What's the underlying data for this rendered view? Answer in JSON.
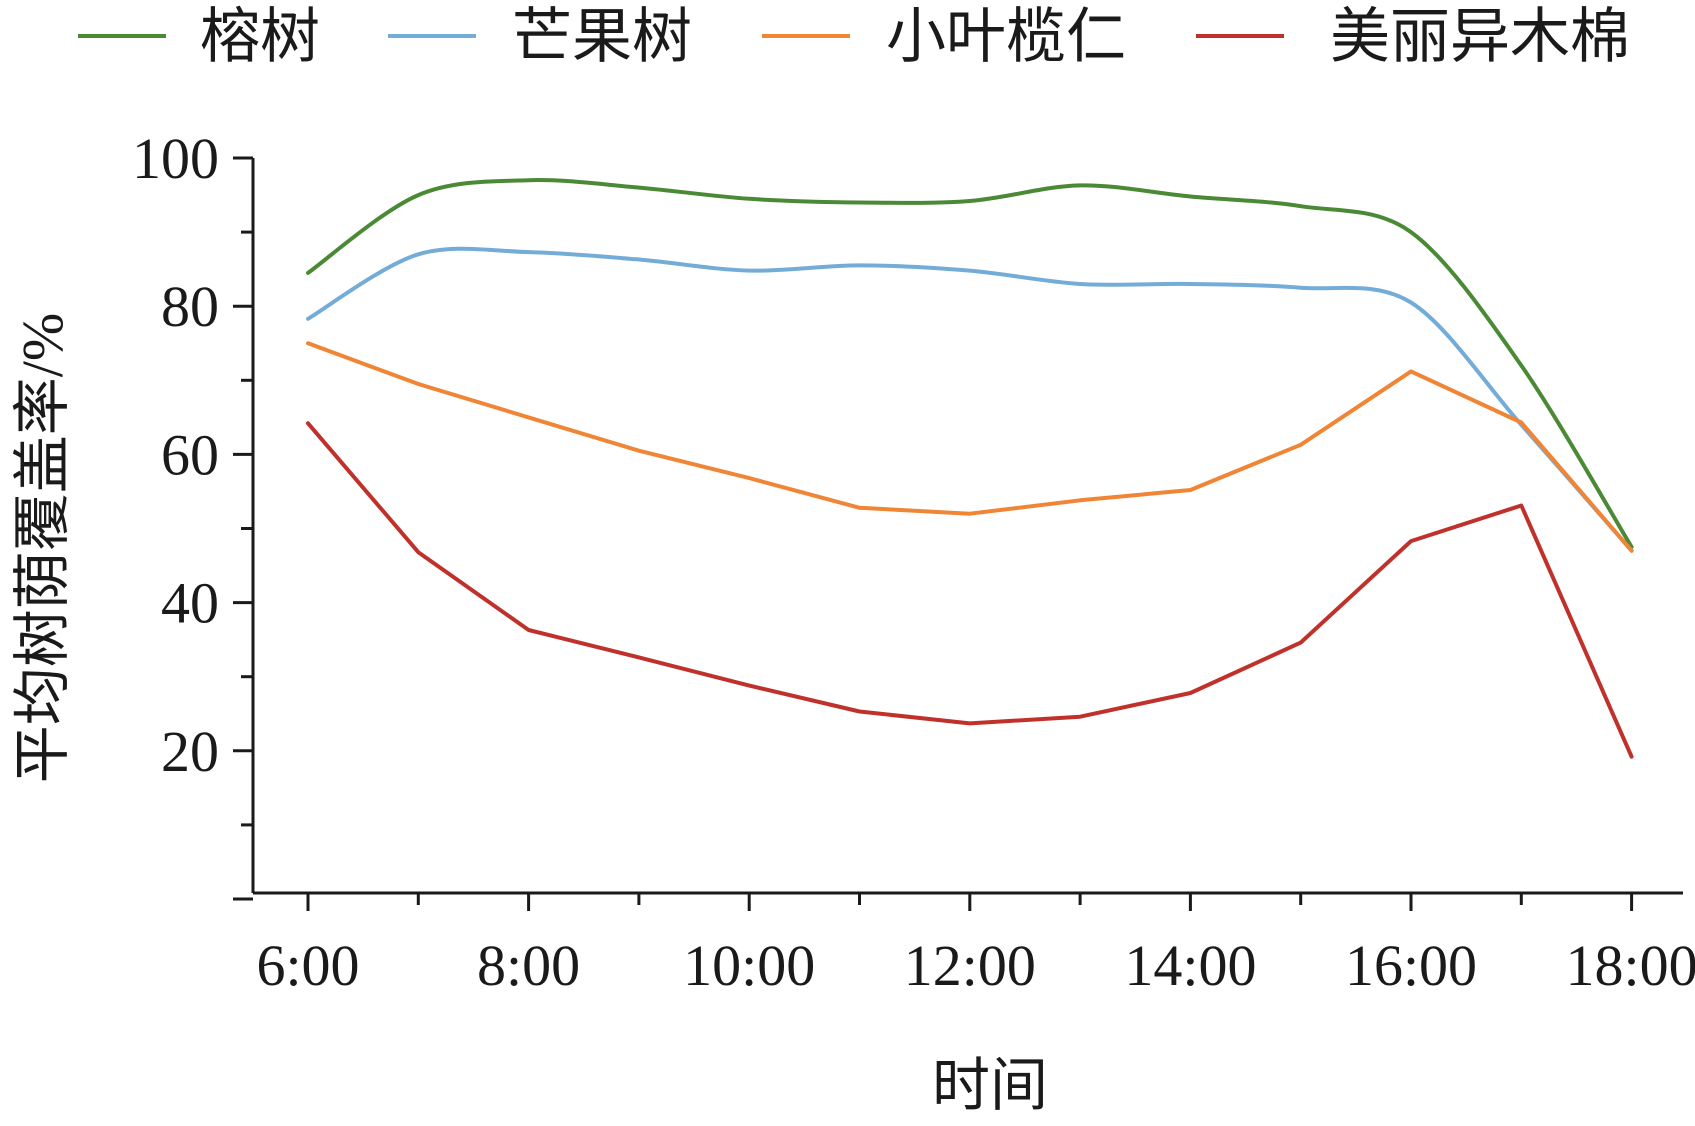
{
  "chart_data": {
    "type": "line",
    "title": "",
    "xlabel": "时间",
    "ylabel": "平均树荫覆盖率/%",
    "categories": [
      "6:00",
      "7:00",
      "8:00",
      "9:00",
      "10:00",
      "11:00",
      "12:00",
      "13:00",
      "14:00",
      "15:00",
      "16:00",
      "17:00",
      "18:00"
    ],
    "x_tick_labels": [
      "6:00",
      "8:00",
      "10:00",
      "12:00",
      "14:00",
      "16:00",
      "18:00"
    ],
    "ylim": [
      0,
      100
    ],
    "y_ticks": [
      20,
      40,
      60,
      80,
      100
    ],
    "grid": false,
    "legend_position": "top",
    "series": [
      {
        "name": "榕树",
        "color": "#4a8a35",
        "smooth": true,
        "values": [
          84.5,
          95,
          97,
          96,
          94.5,
          94,
          94.2,
          96.3,
          94.8,
          93.5,
          90,
          72,
          47.5
        ]
      },
      {
        "name": "芒果树",
        "color": "#74acd8",
        "smooth": true,
        "values": [
          78.3,
          87,
          87.3,
          86.3,
          84.8,
          85.5,
          84.8,
          83,
          83,
          82.5,
          80.5,
          64,
          47
        ]
      },
      {
        "name": "小叶榄仁",
        "color": "#ef8535",
        "smooth": false,
        "values": [
          75,
          69.5,
          65,
          60.5,
          56.8,
          52.8,
          52,
          53.8,
          55.2,
          61.3,
          71.2,
          64.3,
          47
        ]
      },
      {
        "name": "美丽异木棉",
        "color": "#c0312b",
        "smooth": false,
        "values": [
          64.2,
          46.8,
          36.3,
          32.6,
          28.8,
          25.3,
          23.7,
          24.6,
          27.8,
          34.6,
          48.3,
          53.1,
          19.2
        ]
      }
    ]
  }
}
